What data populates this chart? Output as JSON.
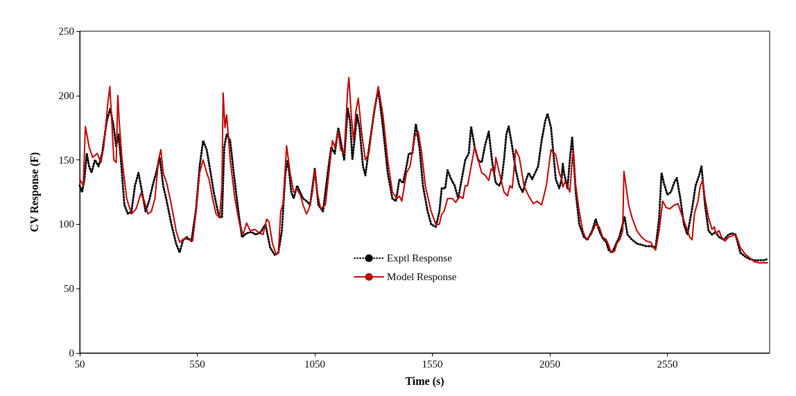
{
  "chart_data": {
    "type": "line",
    "xlabel": "Time (s)",
    "ylabel": "CV Response (F)",
    "xlim": [
      50,
      2985
    ],
    "xticks": [
      50,
      550,
      1050,
      1550,
      2050,
      2550
    ],
    "ylim": [
      0,
      250
    ],
    "yticks": [
      0,
      50,
      100,
      150,
      200,
      250
    ],
    "grid": false,
    "legend": "center",
    "marker": "none",
    "series": [
      {
        "name": "Exptl Response",
        "color": "#000000",
        "line_style": "dotted",
        "x": [
          50,
          60,
          70,
          80,
          90,
          100,
          115,
          130,
          145,
          165,
          180,
          195,
          205,
          215,
          225,
          240,
          255,
          270,
          285,
          300,
          315,
          330,
          345,
          360,
          375,
          390,
          405,
          420,
          440,
          460,
          475,
          490,
          505,
          525,
          545,
          560,
          575,
          590,
          605,
          620,
          640,
          655,
          665,
          675,
          690,
          705,
          725,
          740,
          760,
          780,
          800,
          820,
          840,
          860,
          880,
          895,
          910,
          925,
          935,
          950,
          960,
          975,
          1000,
          1015,
          1030,
          1050,
          1065,
          1085,
          1105,
          1120,
          1135,
          1150,
          1160,
          1175,
          1190,
          1200,
          1210,
          1230,
          1240,
          1255,
          1265,
          1285,
          1305,
          1320,
          1340,
          1360,
          1380,
          1395,
          1410,
          1425,
          1440,
          1450,
          1465,
          1480,
          1495,
          1510,
          1530,
          1545,
          1565,
          1580,
          1590,
          1605,
          1615,
          1630,
          1645,
          1660,
          1670,
          1690,
          1705,
          1715,
          1730,
          1745,
          1760,
          1775,
          1790,
          1805,
          1820,
          1835,
          1845,
          1855,
          1865,
          1875,
          1890,
          1905,
          1920,
          1935,
          1950,
          1960,
          1975,
          2000,
          2015,
          2030,
          2040,
          2055,
          2075,
          2090,
          2100,
          2105,
          2110,
          2125,
          2135,
          2145,
          2160,
          2175,
          2195,
          2210,
          2230,
          2245,
          2260,
          2275,
          2290,
          2300,
          2315,
          2330,
          2345,
          2360,
          2368,
          2380,
          2400,
          2420,
          2440,
          2460,
          2480,
          2500,
          2515,
          2525,
          2535,
          2550,
          2565,
          2580,
          2590,
          2605,
          2620,
          2635,
          2655,
          2670,
          2685,
          2695,
          2710,
          2725,
          2740,
          2755,
          2770,
          2790,
          2810,
          2825,
          2840,
          2860,
          2880,
          2900,
          2920,
          2940,
          2960,
          2975
        ],
        "values": [
          130,
          125,
          135,
          155,
          145,
          140,
          150,
          145,
          155,
          180,
          190,
          175,
          160,
          170,
          150,
          115,
          108,
          110,
          130,
          140,
          125,
          110,
          118,
          130,
          140,
          152,
          130,
          118,
          100,
          85,
          78,
          88,
          90,
          87,
          112,
          145,
          165,
          158,
          142,
          125,
          108,
          105,
          160,
          170,
          165,
          140,
          110,
          90,
          93,
          94,
          92,
          94,
          100,
          82,
          76,
          78,
          95,
          140,
          150,
          125,
          120,
          130,
          120,
          118,
          115,
          143,
          115,
          110,
          140,
          160,
          155,
          175,
          165,
          150,
          190,
          180,
          150,
          185,
          175,
          145,
          138,
          165,
          190,
          205,
          175,
          140,
          120,
          118,
          135,
          132,
          145,
          155,
          155,
          178,
          160,
          130,
          110,
          100,
          98,
          110,
          128,
          128,
          142,
          135,
          130,
          120,
          130,
          150,
          155,
          176,
          160,
          150,
          148,
          162,
          172,
          148,
          132,
          130,
          135,
          150,
          170,
          176,
          160,
          142,
          130,
          125,
          135,
          140,
          135,
          145,
          165,
          180,
          186,
          175,
          135,
          128,
          135,
          147,
          140,
          128,
          150,
          168,
          125,
          100,
          90,
          88,
          95,
          104,
          95,
          89,
          86,
          80,
          78,
          84,
          90,
          100,
          106,
          92,
          88,
          85,
          84,
          83,
          83,
          82,
          105,
          140,
          132,
          123,
          125,
          133,
          136,
          120,
          100,
          92,
          112,
          130,
          138,
          145,
          115,
          95,
          92,
          94,
          90,
          88,
          92,
          93,
          92,
          78,
          75,
          73,
          72,
          72,
          72,
          73
        ]
      },
      {
        "name": "Model Response",
        "color": "#c00000",
        "line_style": "solid",
        "x": [
          50,
          65,
          74,
          90,
          105,
          125,
          140,
          152,
          170,
          178,
          185,
          195,
          205,
          212,
          218,
          230,
          250,
          270,
          290,
          310,
          325,
          340,
          355,
          370,
          385,
          395,
          405,
          420,
          440,
          460,
          475,
          495,
          515,
          530,
          545,
          560,
          575,
          590,
          600,
          615,
          630,
          645,
          655,
          660,
          668,
          675,
          690,
          710,
          730,
          745,
          760,
          775,
          795,
          815,
          830,
          845,
          855,
          870,
          885,
          895,
          905,
          915,
          930,
          945,
          960,
          975,
          990,
          1000,
          1015,
          1025,
          1040,
          1050,
          1060,
          1075,
          1095,
          1110,
          1125,
          1135,
          1150,
          1160,
          1175,
          1190,
          1195,
          1205,
          1215,
          1225,
          1235,
          1250,
          1265,
          1280,
          1300,
          1320,
          1340,
          1360,
          1380,
          1400,
          1410,
          1420,
          1440,
          1455,
          1475,
          1490,
          1505,
          1520,
          1545,
          1565,
          1580,
          1590,
          1600,
          1615,
          1635,
          1650,
          1665,
          1680,
          1690,
          1700,
          1720,
          1730,
          1745,
          1760,
          1775,
          1790,
          1800,
          1815,
          1820,
          1835,
          1855,
          1870,
          1880,
          1890,
          1905,
          1920,
          1940,
          1960,
          1980,
          1995,
          2015,
          2035,
          2055,
          2075,
          2090,
          2100,
          2105,
          2115,
          2125,
          2135,
          2145,
          2150,
          2160,
          2175,
          2190,
          2205,
          2225,
          2245,
          2260,
          2275,
          2290,
          2300,
          2310,
          2325,
          2335,
          2350,
          2360,
          2365,
          2370,
          2385,
          2400,
          2420,
          2440,
          2460,
          2480,
          2490,
          2500,
          2515,
          2530,
          2545,
          2560,
          2580,
          2595,
          2610,
          2630,
          2645,
          2655,
          2665,
          2680,
          2690,
          2700,
          2710,
          2725,
          2740,
          2750,
          2755,
          2770,
          2780,
          2795,
          2810,
          2825,
          2835,
          2845,
          2860,
          2880,
          2900,
          2920,
          2940,
          2960,
          2975
        ],
        "values": [
          135,
          130,
          176,
          160,
          152,
          155,
          148,
          160,
          195,
          207,
          185,
          150,
          148,
          200,
          180,
          150,
          120,
          108,
          112,
          124,
          118,
          108,
          110,
          120,
          150,
          158,
          140,
          132,
          115,
          95,
          86,
          89,
          88,
          87,
          110,
          140,
          150,
          140,
          135,
          120,
          108,
          105,
          130,
          202,
          175,
          185,
          150,
          120,
          100,
          92,
          101,
          95,
          96,
          93,
          92,
          104,
          102,
          85,
          77,
          78,
          110,
          116,
          161,
          140,
          125,
          127,
          122,
          115,
          108,
          112,
          125,
          142,
          125,
          112,
          115,
          140,
          165,
          160,
          172,
          158,
          155,
          205,
          214,
          185,
          165,
          188,
          198,
          170,
          150,
          155,
          185,
          207,
          185,
          150,
          125,
          120,
          122,
          118,
          140,
          145,
          168,
          172,
          155,
          130,
          110,
          100,
          100,
          108,
          110,
          120,
          120,
          117,
          122,
          120,
          130,
          130,
          150,
          160,
          150,
          140,
          138,
          134,
          143,
          140,
          152,
          140,
          125,
          122,
          130,
          128,
          158,
          152,
          130,
          122,
          116,
          118,
          115,
          130,
          158,
          154,
          140,
          135,
          129,
          133,
          130,
          125,
          150,
          157,
          130,
          110,
          95,
          88,
          92,
          100,
          98,
          90,
          88,
          84,
          78,
          79,
          85,
          89,
          95,
          141,
          135,
          115,
          105,
          95,
          90,
          87,
          86,
          82,
          80,
          95,
          118,
          113,
          112,
          115,
          116,
          108,
          98,
          90,
          88,
          108,
          118,
          130,
          134,
          120,
          105,
          96,
          98,
          93,
          95,
          90,
          87,
          90,
          91,
          92,
          90,
          82,
          77,
          74,
          71,
          70,
          70,
          70
        ]
      }
    ]
  }
}
